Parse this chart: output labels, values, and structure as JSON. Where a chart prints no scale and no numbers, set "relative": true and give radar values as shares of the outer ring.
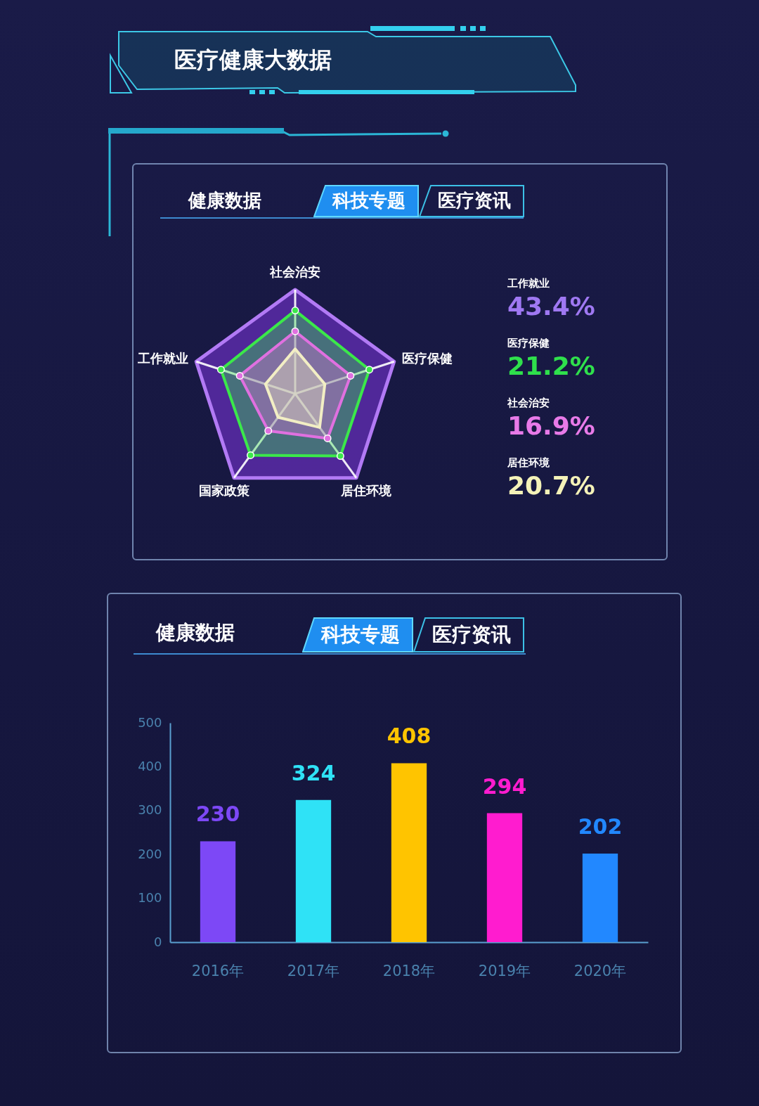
{
  "chart_data": [
    {
      "type": "other",
      "title": "医疗健康大数据"
    },
    {
      "type": "radar",
      "title": "健康数据",
      "annotations": [
        "科技专题",
        "医疗资讯"
      ],
      "categories": [
        "社会治安",
        "医疗保健",
        "居住环境",
        "国家政策",
        "工作就业"
      ],
      "relative": true,
      "grid": true,
      "series": [
        {
          "color": "#3be84a",
          "values": [
            0.8,
            0.75,
            0.74,
            0.73,
            0.75
          ],
          "marker": "circle"
        },
        {
          "color": "#e070e0",
          "values": [
            0.6,
            0.56,
            0.53,
            0.44,
            0.56
          ],
          "marker": "circle"
        },
        {
          "color": "#f2eec4",
          "values": [
            0.43,
            0.3,
            0.4,
            0.28,
            0.3
          ]
        }
      ]
    },
    {
      "type": "other",
      "categories": [
        "工作就业",
        "医疗保健",
        "社会治安",
        "居住环境"
      ],
      "value_labels": [
        "43.4%",
        "21.2%",
        "16.9%",
        "20.7%"
      ],
      "colors": [
        "#9f78f2",
        "#2fe04c",
        "#e87ae8",
        "#f4f2b8"
      ]
    },
    {
      "type": "bar",
      "title": "健康数据",
      "annotations": [
        "科技专题",
        "医疗资讯"
      ],
      "categories": [
        "2016年",
        "2017年",
        "2018年",
        "2019年",
        "2020年"
      ],
      "values": [
        230,
        324,
        408,
        294,
        202
      ],
      "colors": [
        "#7d48f6",
        "#2fe2f6",
        "#ffc400",
        "#ff1ccf",
        "#2288ff"
      ],
      "ylim": [
        0,
        500
      ],
      "yticks": [
        0,
        100,
        200,
        300,
        400,
        500
      ],
      "data_labels": true
    }
  ]
}
